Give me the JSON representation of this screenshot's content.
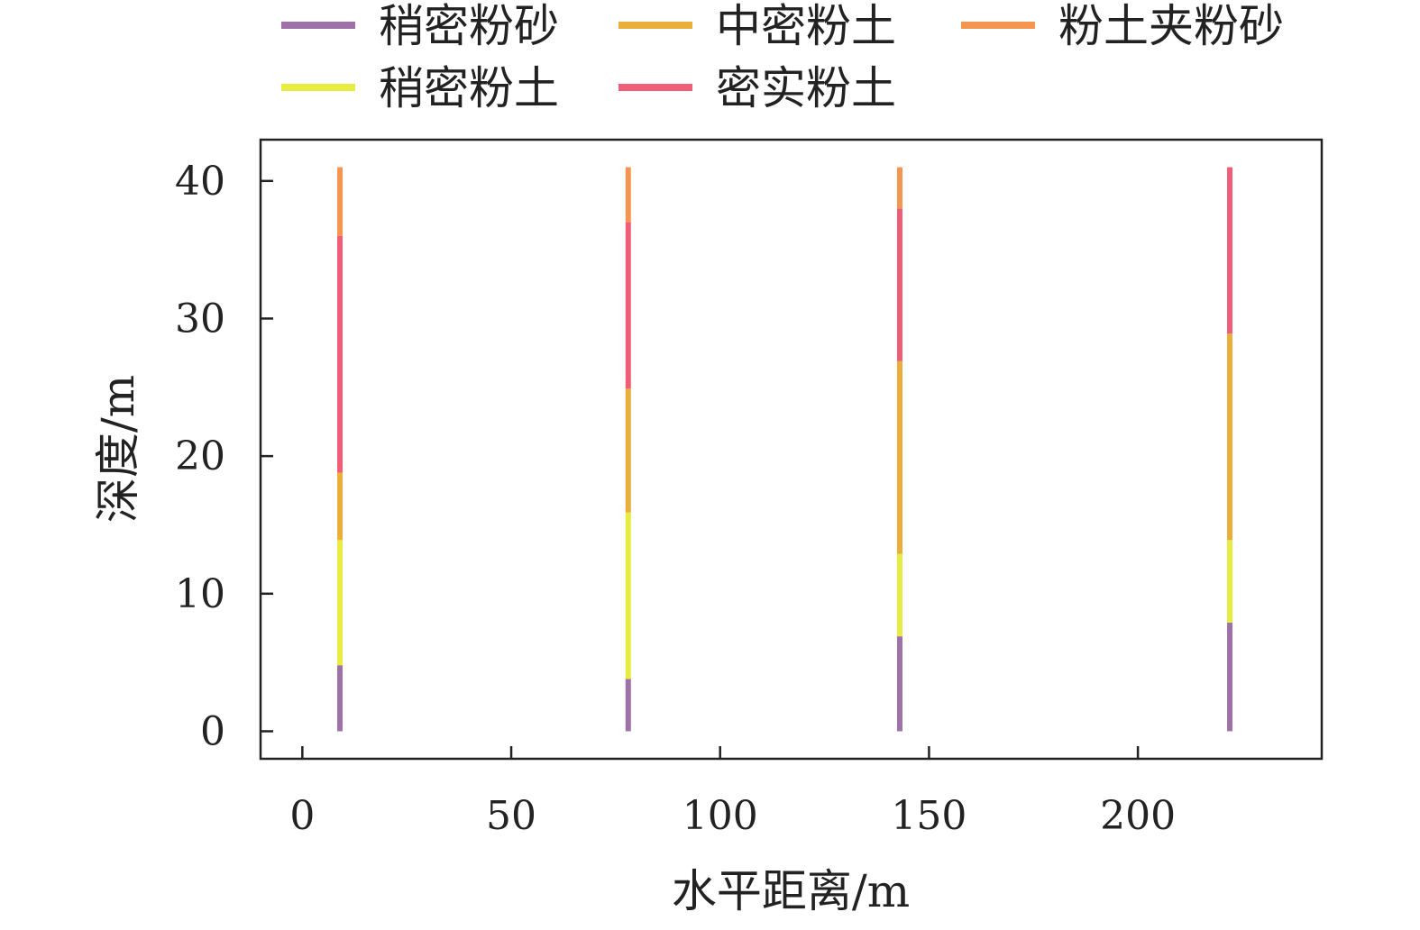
{
  "chart_data": {
    "type": "bar",
    "xlabel": "水平距离/m",
    "ylabel": "深度/m",
    "xlim": [
      -10,
      244
    ],
    "ylim": [
      -2,
      43
    ],
    "xticks": [
      0,
      50,
      100,
      150,
      200
    ],
    "yticks": [
      0,
      10,
      20,
      30,
      40
    ],
    "grid": false,
    "legend_position": "top",
    "series": [
      {
        "name": "稍密粉砂",
        "color": "#9e72a8"
      },
      {
        "name": "中密粉土",
        "color": "#eaae3b"
      },
      {
        "name": "粉土夹粉砂",
        "color": "#f49651"
      },
      {
        "name": "稍密粉土",
        "color": "#e7ec41"
      },
      {
        "name": "密实粉土",
        "color": "#ee5e79"
      }
    ],
    "boreholes": [
      {
        "x": 9,
        "layers": [
          {
            "soil": "稍密粉砂",
            "from": 0,
            "to": 4.8
          },
          {
            "soil": "稍密粉土",
            "from": 4.8,
            "to": 13.9
          },
          {
            "soil": "中密粉土",
            "from": 13.9,
            "to": 18.8
          },
          {
            "soil": "密实粉土",
            "from": 18.8,
            "to": 36
          },
          {
            "soil": "粉土夹粉砂",
            "from": 36,
            "to": 41
          }
        ]
      },
      {
        "x": 78,
        "layers": [
          {
            "soil": "稍密粉砂",
            "from": 0,
            "to": 3.8
          },
          {
            "soil": "稍密粉土",
            "from": 3.8,
            "to": 15.9
          },
          {
            "soil": "中密粉土",
            "from": 15.9,
            "to": 24.9
          },
          {
            "soil": "密实粉土",
            "from": 24.9,
            "to": 37
          },
          {
            "soil": "粉土夹粉砂",
            "from": 37,
            "to": 41
          }
        ]
      },
      {
        "x": 143,
        "layers": [
          {
            "soil": "稍密粉砂",
            "from": 0,
            "to": 6.9
          },
          {
            "soil": "稍密粉土",
            "from": 6.9,
            "to": 12.9
          },
          {
            "soil": "中密粉土",
            "from": 12.9,
            "to": 26.9
          },
          {
            "soil": "密实粉土",
            "from": 26.9,
            "to": 38
          },
          {
            "soil": "粉土夹粉砂",
            "from": 38,
            "to": 41
          }
        ]
      },
      {
        "x": 222,
        "layers": [
          {
            "soil": "稍密粉砂",
            "from": 0,
            "to": 7.9
          },
          {
            "soil": "稍密粉土",
            "from": 7.9,
            "to": 13.9
          },
          {
            "soil": "中密粉土",
            "from": 13.9,
            "to": 28.9
          },
          {
            "soil": "密实粉土",
            "from": 28.9,
            "to": 41
          }
        ]
      }
    ]
  }
}
